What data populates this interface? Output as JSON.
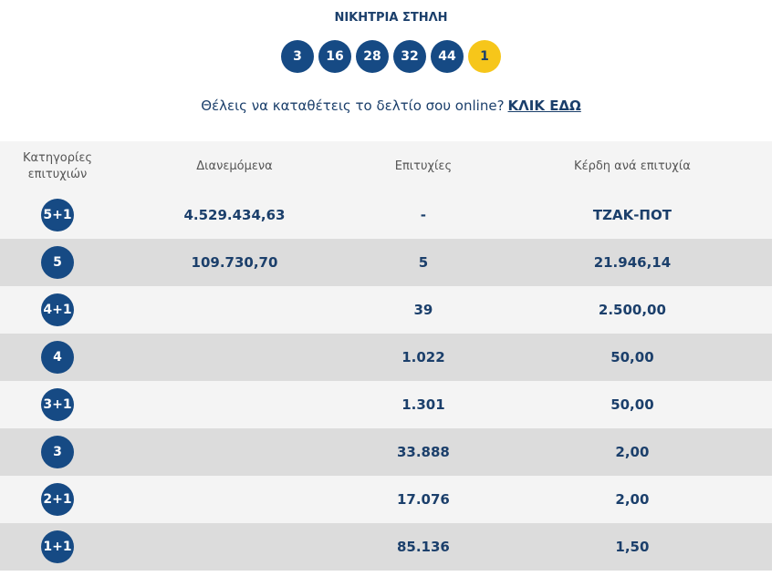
{
  "header": {
    "title": "ΝΙΚΗΤΡΙΑ ΣΤΗΛΗ",
    "numbers": [
      "3",
      "16",
      "28",
      "32",
      "44"
    ],
    "bonus": "1"
  },
  "prompt": {
    "text": "Θέλεις να καταθέτεις το δελτίο σου online?",
    "link": "ΚΛΙΚ ΕΔΩ"
  },
  "table": {
    "headers": [
      "Κατηγορίες επιτυχιών",
      "Διανεμόμενα",
      "Επιτυχίες",
      "Κέρδη ανά επιτυχία"
    ],
    "rows": [
      {
        "category": "5+1",
        "distributed": "4.529.434,63",
        "winners": "-",
        "prize": "ΤΖΑΚ-ΠΟΤ"
      },
      {
        "category": "5",
        "distributed": "109.730,70",
        "winners": "5",
        "prize": "21.946,14"
      },
      {
        "category": "4+1",
        "winners": "39",
        "prize": "2.500,00"
      },
      {
        "category": "4",
        "winners": "1.022",
        "prize": "50,00"
      },
      {
        "category": "3+1",
        "winners": "1.301",
        "prize": "50,00"
      },
      {
        "category": "3",
        "winners": "33.888",
        "prize": "2,00"
      },
      {
        "category": "2+1",
        "winners": "17.076",
        "prize": "2,00"
      },
      {
        "category": "1+1",
        "winners": "85.136",
        "prize": "1,50"
      }
    ]
  }
}
